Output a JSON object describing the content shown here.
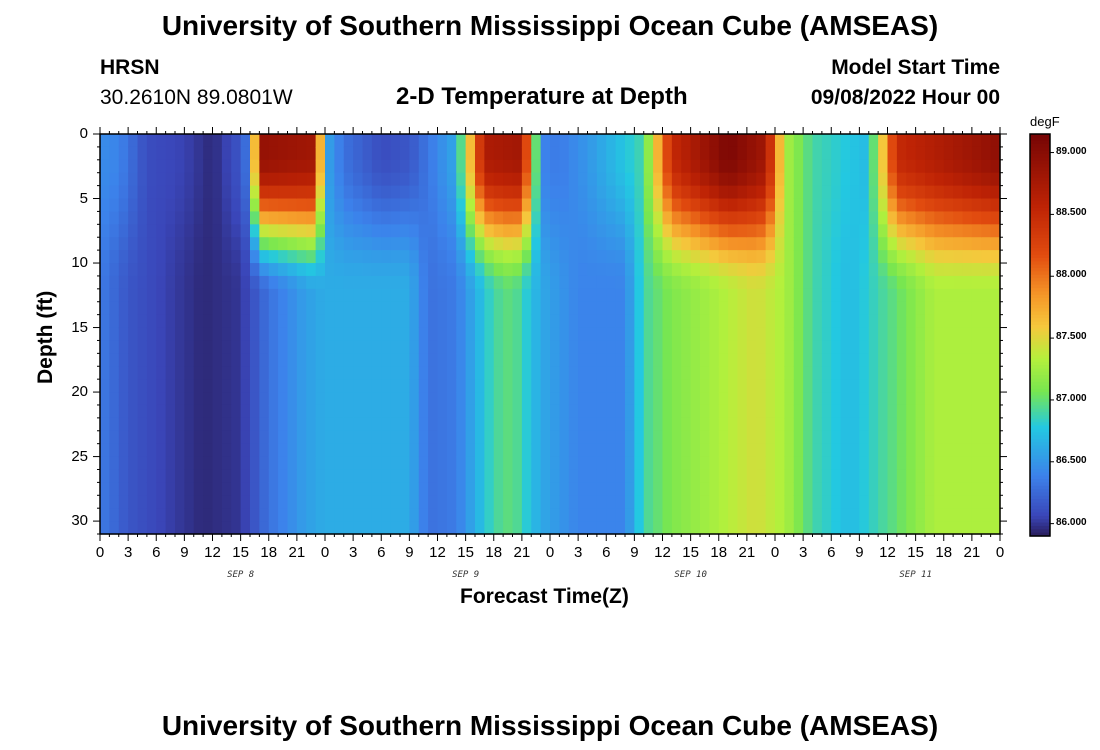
{
  "header": {
    "title": "University of Southern Mississippi Ocean Cube (AMSEAS)",
    "station": "HRSN",
    "coords": "30.2610N  89.0801W",
    "subtitle": "2-D Temperature at Depth",
    "model_label": "Model Start Time",
    "model_time": "09/08/2022 Hour 00"
  },
  "footer": {
    "title": "University of Southern Mississippi Ocean Cube (AMSEAS)"
  },
  "colorbar": {
    "unit": "degF",
    "ticks": [
      "86.000",
      "86.500",
      "87.000",
      "87.500",
      "88.000",
      "88.500",
      "89.000"
    ],
    "min": 85.9,
    "max": 89.15
  },
  "chart_data": {
    "type": "heatmap",
    "title": "2-D Temperature at Depth",
    "xlabel": "Forecast Time(Z)",
    "ylabel": "Depth (ft)",
    "x_tick_labels": [
      "0",
      "3",
      "6",
      "9",
      "12",
      "15",
      "18",
      "21",
      "0",
      "3",
      "6",
      "9",
      "12",
      "15",
      "18",
      "21",
      "0",
      "3",
      "6",
      "9",
      "12",
      "15",
      "18",
      "21",
      "0",
      "3",
      "6",
      "9",
      "12",
      "15",
      "18",
      "21",
      "0"
    ],
    "day_labels": [
      "SEP 8",
      "SEP 9",
      "SEP 10",
      "SEP 11"
    ],
    "day_label_hours": [
      15,
      39,
      63,
      87
    ],
    "xlim_hours": [
      0,
      96
    ],
    "y_ticks": [
      0,
      5,
      10,
      15,
      20,
      25,
      30
    ],
    "ylim_ft": [
      0,
      31
    ],
    "unit": "degF",
    "temperature_range": [
      85.9,
      89.15
    ],
    "surface_profile_degF": [
      [
        0,
        86.45
      ],
      [
        2,
        86.4
      ],
      [
        5,
        86.1
      ],
      [
        9,
        86.05
      ],
      [
        12,
        85.95
      ],
      [
        15,
        86.15
      ],
      [
        16,
        86.4
      ],
      [
        17,
        88.9
      ],
      [
        23,
        88.8
      ],
      [
        24,
        86.6
      ],
      [
        26,
        86.3
      ],
      [
        30,
        86.1
      ],
      [
        33,
        86.15
      ],
      [
        38,
        86.6
      ],
      [
        41,
        88.7
      ],
      [
        45,
        88.8
      ],
      [
        47,
        86.4
      ],
      [
        49,
        86.35
      ],
      [
        52,
        86.5
      ],
      [
        58,
        86.9
      ],
      [
        61,
        88.5
      ],
      [
        67,
        89.1
      ],
      [
        71,
        88.8
      ],
      [
        73,
        87.3
      ],
      [
        76,
        86.9
      ],
      [
        82,
        86.7
      ],
      [
        85,
        88.5
      ],
      [
        96,
        88.95
      ]
    ],
    "deep_profile_degF": [
      [
        0,
        86.35
      ],
      [
        3,
        86.15
      ],
      [
        8,
        86.02
      ],
      [
        11,
        85.95
      ],
      [
        15,
        86.0
      ],
      [
        18,
        86.3
      ],
      [
        22,
        86.55
      ],
      [
        24,
        86.62
      ],
      [
        33,
        86.62
      ],
      [
        35,
        86.3
      ],
      [
        38,
        86.35
      ],
      [
        42,
        86.9
      ],
      [
        44,
        87.0
      ],
      [
        47,
        86.6
      ],
      [
        51,
        86.4
      ],
      [
        56,
        86.4
      ],
      [
        58,
        86.9
      ],
      [
        61,
        87.1
      ],
      [
        66,
        87.3
      ],
      [
        70,
        87.45
      ],
      [
        73,
        87.3
      ],
      [
        76,
        86.9
      ],
      [
        80,
        86.7
      ],
      [
        85,
        87.0
      ],
      [
        89,
        87.3
      ],
      [
        96,
        87.3
      ]
    ]
  }
}
